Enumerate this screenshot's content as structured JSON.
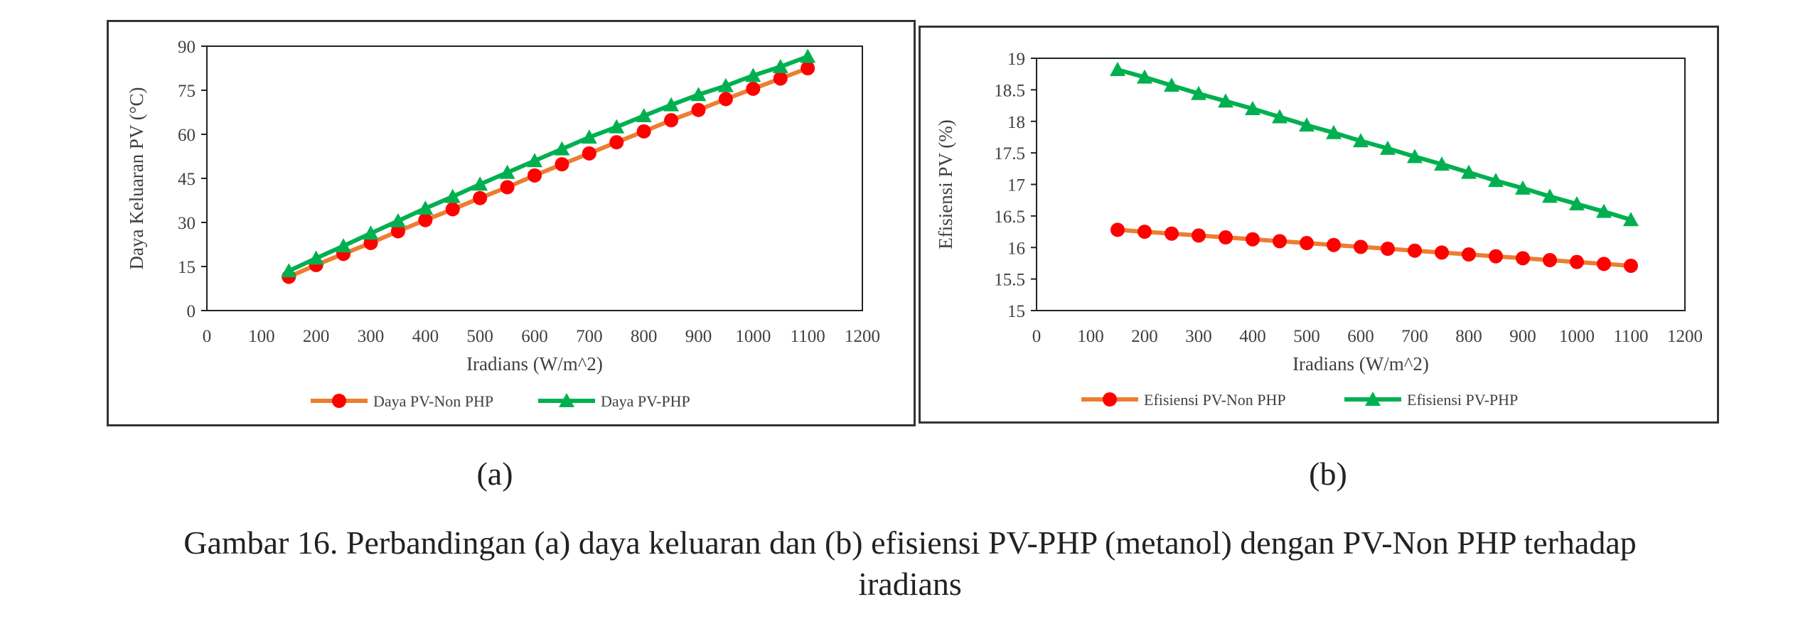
{
  "chart_data": [
    {
      "type": "line",
      "title": "",
      "xlabel": "Iradians (W/m^2)",
      "ylabel": "Daya Keluaran PV (°C)",
      "xlim": [
        0,
        1200
      ],
      "ylim": [
        0,
        90
      ],
      "x_ticks": [
        "0",
        "100",
        "200",
        "300",
        "400",
        "500",
        "600",
        "700",
        "800",
        "900",
        "1000",
        "1100",
        "1200"
      ],
      "y_ticks": [
        "0",
        "15",
        "30",
        "45",
        "60",
        "75",
        "90"
      ],
      "grid": false,
      "legend_position": "bottom",
      "x": [
        150,
        200,
        250,
        300,
        350,
        400,
        450,
        500,
        550,
        600,
        650,
        700,
        750,
        800,
        850,
        900,
        950,
        1000,
        1050,
        1100
      ],
      "series": [
        {
          "name": "Daya PV-Non PHP",
          "color": "#ff0000",
          "line_color": "#ed7d31",
          "marker": "circle",
          "values": [
            11.5,
            15.5,
            19.3,
            23.0,
            27.0,
            30.8,
            34.5,
            38.3,
            42.0,
            46.0,
            49.8,
            53.5,
            57.3,
            61.0,
            64.8,
            68.3,
            72.0,
            75.5,
            79.0,
            82.5
          ]
        },
        {
          "name": "Daya PV-PHP",
          "color": "#00b050",
          "line_color": "#00b050",
          "marker": "triangle",
          "values": [
            13.5,
            17.8,
            22.0,
            26.3,
            30.5,
            34.8,
            38.8,
            43.0,
            47.0,
            51.0,
            55.0,
            59.0,
            62.5,
            66.3,
            70.0,
            73.5,
            76.5,
            80.0,
            83.0,
            86.5
          ]
        }
      ]
    },
    {
      "type": "line",
      "title": "",
      "xlabel": "Iradians (W/m^2)",
      "ylabel": "Efisiensi PV (%)",
      "xlim": [
        0,
        1200
      ],
      "ylim": [
        15,
        19
      ],
      "x_ticks": [
        "0",
        "100",
        "200",
        "300",
        "400",
        "500",
        "600",
        "700",
        "800",
        "900",
        "1000",
        "1100",
        "1200"
      ],
      "y_ticks": [
        "15",
        "15.5",
        "16",
        "16.5",
        "17",
        "17.5",
        "18",
        "18.5",
        "19"
      ],
      "grid": false,
      "legend_position": "bottom",
      "x": [
        150,
        200,
        250,
        300,
        350,
        400,
        450,
        500,
        550,
        600,
        650,
        700,
        750,
        800,
        850,
        900,
        950,
        1000,
        1050,
        1100
      ],
      "series": [
        {
          "name": "Efisiensi PV-Non PHP",
          "color": "#ff0000",
          "line_color": "#ed7d31",
          "marker": "circle",
          "values": [
            16.28,
            16.25,
            16.22,
            16.19,
            16.16,
            16.13,
            16.1,
            16.07,
            16.04,
            16.01,
            15.98,
            15.95,
            15.92,
            15.89,
            15.86,
            15.83,
            15.8,
            15.77,
            15.74,
            15.71
          ]
        },
        {
          "name": "Efisiensi PV-PHP",
          "color": "#00b050",
          "line_color": "#00b050",
          "marker": "triangle",
          "values": [
            18.82,
            18.7,
            18.57,
            18.44,
            18.32,
            18.2,
            18.07,
            17.94,
            17.82,
            17.69,
            17.57,
            17.44,
            17.32,
            17.19,
            17.06,
            16.94,
            16.81,
            16.69,
            16.57,
            16.44
          ]
        }
      ]
    }
  ],
  "labels": {
    "a": "(a)",
    "b": "(b)"
  },
  "caption": {
    "line1": "Gambar 16. Perbandingan (a) daya keluaran dan (b) efisiensi PV-PHP (metanol) dengan PV-Non PHP terhadap",
    "line2": "iradians"
  }
}
